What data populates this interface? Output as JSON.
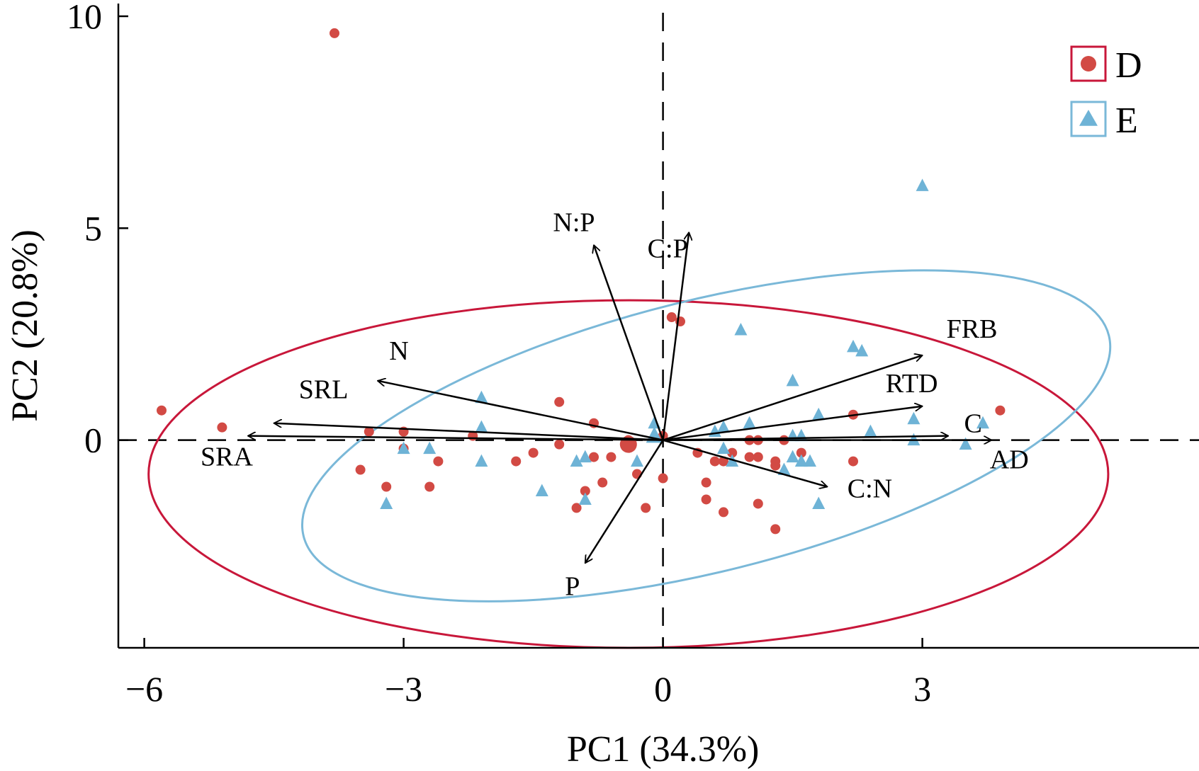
{
  "chart_data": {
    "type": "scatter",
    "title": "",
    "xlabel": "PC1 (34.3%)",
    "ylabel": "PC2 (20.8%)",
    "xlim": [
      -6.3,
      6.2
    ],
    "ylim": [
      -4.9,
      10.3
    ],
    "xticks": [
      -6,
      -3,
      0,
      3
    ],
    "xtick_labels": [
      "−6",
      "−3",
      "0",
      "3"
    ],
    "yticks": [
      0,
      5,
      10
    ],
    "ytick_labels": [
      "0",
      "5",
      "10"
    ],
    "reference_lines": {
      "x": 0,
      "y": 0,
      "style": "dashed"
    },
    "colors": {
      "D": "#d24a44",
      "E": "#6eb3d6",
      "D_ellipse": "#c8173a",
      "E_ellipse": "#7ab8d8",
      "arrow": "#000000"
    },
    "legend": {
      "position": "top-right",
      "entries": [
        {
          "label": "D",
          "marker": "circle",
          "color": "#d24a44"
        },
        {
          "label": "E",
          "marker": "triangle",
          "color": "#6eb3d6"
        }
      ]
    },
    "series": [
      {
        "name": "D",
        "marker": "circle",
        "points": [
          [
            -3.8,
            9.6
          ],
          [
            -5.8,
            0.7
          ],
          [
            -5.1,
            0.3
          ],
          [
            -3.4,
            0.2
          ],
          [
            -3.0,
            0.2
          ],
          [
            -3.5,
            -0.7
          ],
          [
            -3.2,
            -1.1
          ],
          [
            -3.0,
            -0.2
          ],
          [
            -2.6,
            -0.5
          ],
          [
            -2.7,
            -1.1
          ],
          [
            -2.2,
            0.1
          ],
          [
            -1.7,
            -0.5
          ],
          [
            -1.5,
            -0.3
          ],
          [
            -1.2,
            0.9
          ],
          [
            -1.2,
            -0.1
          ],
          [
            -0.8,
            0.4
          ],
          [
            -0.8,
            -0.4
          ],
          [
            -0.7,
            -1.0
          ],
          [
            -0.9,
            -1.2
          ],
          [
            -1.0,
            -1.6
          ],
          [
            -0.6,
            -0.4
          ],
          [
            -0.4,
            0.0
          ],
          [
            -0.4,
            -0.1
          ],
          [
            -0.3,
            -0.8
          ],
          [
            -0.2,
            -1.6
          ],
          [
            0.0,
            0.1
          ],
          [
            0.0,
            -0.9
          ],
          [
            0.1,
            2.9
          ],
          [
            0.2,
            2.8
          ],
          [
            0.4,
            -0.3
          ],
          [
            0.5,
            -1.0
          ],
          [
            0.5,
            -1.4
          ],
          [
            0.6,
            -0.5
          ],
          [
            0.7,
            -0.5
          ],
          [
            0.7,
            -1.7
          ],
          [
            0.8,
            -0.3
          ],
          [
            1.0,
            -0.4
          ],
          [
            1.0,
            0.0
          ],
          [
            1.1,
            0.0
          ],
          [
            1.1,
            -0.4
          ],
          [
            1.1,
            -1.5
          ],
          [
            1.3,
            -0.5
          ],
          [
            1.3,
            -0.6
          ],
          [
            1.3,
            -2.1
          ],
          [
            1.4,
            0.0
          ],
          [
            1.6,
            -0.3
          ],
          [
            2.2,
            0.6
          ],
          [
            2.2,
            -0.5
          ],
          [
            3.9,
            0.7
          ]
        ]
      },
      {
        "name": "E",
        "marker": "triangle",
        "points": [
          [
            3.0,
            6.0
          ],
          [
            -2.1,
            1.0
          ],
          [
            -2.1,
            0.3
          ],
          [
            -3.0,
            -0.2
          ],
          [
            -3.2,
            -1.5
          ],
          [
            -2.7,
            -0.2
          ],
          [
            -2.1,
            -0.5
          ],
          [
            -1.4,
            -1.2
          ],
          [
            -1.0,
            -0.5
          ],
          [
            -0.9,
            -1.4
          ],
          [
            -0.9,
            -0.4
          ],
          [
            -0.3,
            -0.5
          ],
          [
            -0.1,
            0.4
          ],
          [
            0.6,
            0.2
          ],
          [
            0.7,
            0.3
          ],
          [
            0.7,
            -0.2
          ],
          [
            0.8,
            -0.5
          ],
          [
            0.9,
            2.6
          ],
          [
            1.0,
            0.4
          ],
          [
            1.4,
            -0.7
          ],
          [
            1.5,
            1.4
          ],
          [
            1.5,
            0.1
          ],
          [
            1.5,
            -0.4
          ],
          [
            1.6,
            0.1
          ],
          [
            1.6,
            -0.5
          ],
          [
            1.7,
            -0.5
          ],
          [
            1.8,
            0.6
          ],
          [
            1.8,
            -1.5
          ],
          [
            2.2,
            2.2
          ],
          [
            2.3,
            2.1
          ],
          [
            2.4,
            0.2
          ],
          [
            2.9,
            0.5
          ],
          [
            2.9,
            0.0
          ],
          [
            3.5,
            -0.1
          ],
          [
            3.7,
            0.4
          ]
        ]
      }
    ],
    "centroids": [
      {
        "name": "D",
        "point": [
          -0.4,
          -0.1
        ]
      },
      {
        "name": "E",
        "point": [
          -0.1,
          0.1
        ]
      }
    ],
    "loadings": [
      {
        "label": "N:P",
        "x": -0.8,
        "y": 4.6
      },
      {
        "label": "C:P",
        "x": 0.3,
        "y": 4.9
      },
      {
        "label": "N",
        "x": -3.3,
        "y": 1.4
      },
      {
        "label": "SRL",
        "x": -4.5,
        "y": 0.4
      },
      {
        "label": "SRA",
        "x": -4.8,
        "y": 0.1
      },
      {
        "label": "FRB",
        "x": 3.0,
        "y": 2.0
      },
      {
        "label": "RTD",
        "x": 3.0,
        "y": 0.8
      },
      {
        "label": "C",
        "x": 3.3,
        "y": 0.1
      },
      {
        "label": "AD",
        "x": 3.8,
        "y": 0.0
      },
      {
        "label": "C:N",
        "x": 1.9,
        "y": -1.1
      },
      {
        "label": "P",
        "x": -0.9,
        "y": -2.9
      }
    ],
    "ellipses": [
      {
        "name": "D",
        "center": [
          -0.4,
          -0.8
        ],
        "semi_axes": [
          5.55,
          4.1
        ],
        "rotation_deg": 0
      },
      {
        "name": "E",
        "center": [
          0.5,
          0.1
        ],
        "semi_axes": [
          4.8,
          3.2
        ],
        "rotation_deg": 14
      }
    ]
  }
}
